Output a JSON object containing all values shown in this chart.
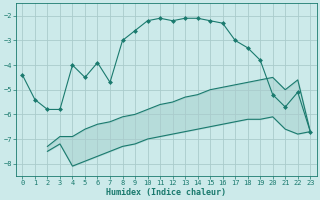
{
  "title": "",
  "xlabel": "Humidex (Indice chaleur)",
  "bg_color": "#cceaea",
  "grid_color": "#aacccc",
  "line_color": "#1a7a6e",
  "xlim": [
    -0.5,
    23.5
  ],
  "ylim": [
    -8.5,
    -1.5
  ],
  "yticks": [
    -8,
    -7,
    -6,
    -5,
    -4,
    -3,
    -2
  ],
  "xticks": [
    0,
    1,
    2,
    3,
    4,
    5,
    6,
    7,
    8,
    9,
    10,
    11,
    12,
    13,
    14,
    15,
    16,
    17,
    18,
    19,
    20,
    21,
    22,
    23
  ],
  "curve1_x": [
    0,
    1,
    2,
    3,
    4,
    5,
    6,
    7,
    8,
    9,
    10,
    11,
    12,
    13,
    14,
    15,
    16,
    17,
    18,
    19,
    20,
    21,
    22,
    23
  ],
  "curve1_y": [
    -4.4,
    -5.4,
    -5.8,
    -5.8,
    -4.0,
    -4.5,
    -3.9,
    -4.7,
    -3.0,
    -2.6,
    -2.2,
    -2.1,
    -2.2,
    -2.1,
    -2.1,
    -2.2,
    -2.3,
    -3.0,
    -3.3,
    -3.8,
    -5.2,
    -5.7,
    -5.1,
    -6.7
  ],
  "curve2_x": [
    2,
    3,
    4,
    5,
    6,
    7,
    8,
    9,
    10,
    11,
    12,
    13,
    14,
    15,
    16,
    17,
    18,
    19,
    20,
    21,
    22,
    23
  ],
  "curve2_y": [
    -7.3,
    -6.9,
    -6.9,
    -6.6,
    -6.4,
    -6.3,
    -6.1,
    -6.0,
    -5.8,
    -5.6,
    -5.5,
    -5.3,
    -5.2,
    -5.0,
    -4.9,
    -4.8,
    -4.7,
    -4.6,
    -4.5,
    -5.0,
    -4.6,
    -6.7
  ],
  "curve3_x": [
    2,
    3,
    4,
    5,
    6,
    7,
    8,
    9,
    10,
    11,
    12,
    13,
    14,
    15,
    16,
    17,
    18,
    19,
    20,
    21,
    22,
    23
  ],
  "curve3_y": [
    -7.5,
    -7.2,
    -8.1,
    -7.9,
    -7.7,
    -7.5,
    -7.3,
    -7.2,
    -7.0,
    -6.9,
    -6.8,
    -6.7,
    -6.6,
    -6.5,
    -6.4,
    -6.3,
    -6.2,
    -6.2,
    -6.1,
    -6.6,
    -6.8,
    -6.7
  ]
}
